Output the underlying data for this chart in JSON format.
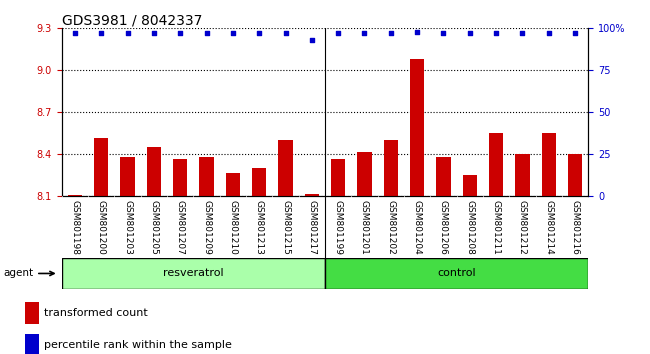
{
  "title": "GDS3981 / 8042337",
  "categories": [
    "GSM801198",
    "GSM801200",
    "GSM801203",
    "GSM801205",
    "GSM801207",
    "GSM801209",
    "GSM801210",
    "GSM801213",
    "GSM801215",
    "GSM801217",
    "GSM801199",
    "GSM801201",
    "GSM801202",
    "GSM801204",
    "GSM801206",
    "GSM801208",
    "GSM801211",
    "GSM801212",
    "GSM801214",
    "GSM801216"
  ],
  "bar_values": [
    8.11,
    8.52,
    8.38,
    8.45,
    8.37,
    8.38,
    8.27,
    8.3,
    8.5,
    8.12,
    8.37,
    8.42,
    8.5,
    9.08,
    8.38,
    8.25,
    8.55,
    8.4,
    8.55,
    8.4
  ],
  "percentile_values": [
    97,
    97,
    97,
    97,
    97,
    97,
    97,
    97,
    97,
    93,
    97,
    97,
    97,
    98,
    97,
    97,
    97,
    97,
    97,
    97
  ],
  "ylim_left": [
    8.1,
    9.3
  ],
  "ylim_right": [
    0,
    100
  ],
  "yticks_left": [
    8.1,
    8.4,
    8.7,
    9.0,
    9.3
  ],
  "yticks_right": [
    0,
    25,
    50,
    75,
    100
  ],
  "bar_color": "#cc0000",
  "dot_color": "#0000cc",
  "resveratrol_count": 10,
  "control_count": 10,
  "resveratrol_color": "#aaffaa",
  "control_color": "#44dd44",
  "plot_bg_color": "#ffffff",
  "xtick_bg_color": "#cccccc",
  "agent_label": "agent",
  "group_labels": [
    "resveratrol",
    "control"
  ],
  "legend_bar_label": "transformed count",
  "legend_dot_label": "percentile rank within the sample",
  "ylabel_left_color": "#cc0000",
  "ylabel_right_color": "#0000cc",
  "grid_color": "#000000",
  "title_fontsize": 10,
  "tick_fontsize": 7,
  "bar_width": 0.55
}
